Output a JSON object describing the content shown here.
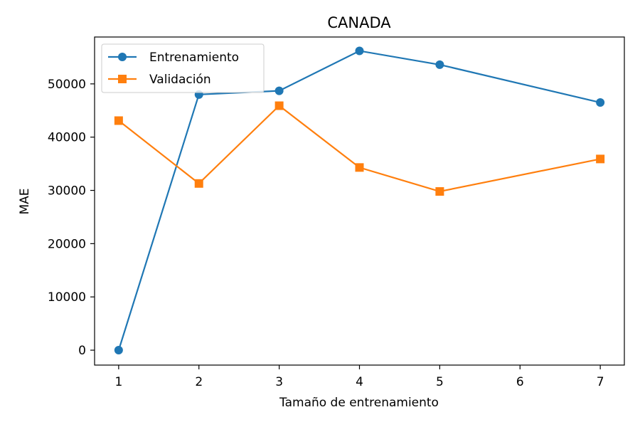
{
  "chart_data": {
    "type": "line",
    "title": "CANADA",
    "xlabel": "Tamaño de entrenamiento",
    "ylabel": "MAE",
    "x": [
      1,
      2,
      3,
      4,
      5,
      6,
      7
    ],
    "xticks": [
      "1",
      "2",
      "3",
      "4",
      "5",
      "6",
      "7"
    ],
    "yticks": [
      "0",
      "10000",
      "20000",
      "30000",
      "40000",
      "50000"
    ],
    "xlim": [
      0.7,
      7.3
    ],
    "ylim": [
      -2800,
      58800
    ],
    "grid": false,
    "legend_position": "top-left",
    "series": [
      {
        "name": "Entrenamiento",
        "color": "#1f77b4",
        "marker": "circle",
        "points": [
          [
            1,
            0
          ],
          [
            2,
            48000
          ],
          [
            3,
            48700
          ],
          [
            4,
            56200
          ],
          [
            5,
            53600
          ],
          [
            7,
            46500
          ]
        ]
      },
      {
        "name": "Validación",
        "color": "#ff7f0e",
        "marker": "square",
        "points": [
          [
            1,
            43100
          ],
          [
            2,
            31300
          ],
          [
            3,
            45900
          ],
          [
            4,
            34300
          ],
          [
            5,
            29800
          ],
          [
            7,
            35900
          ]
        ]
      }
    ]
  }
}
